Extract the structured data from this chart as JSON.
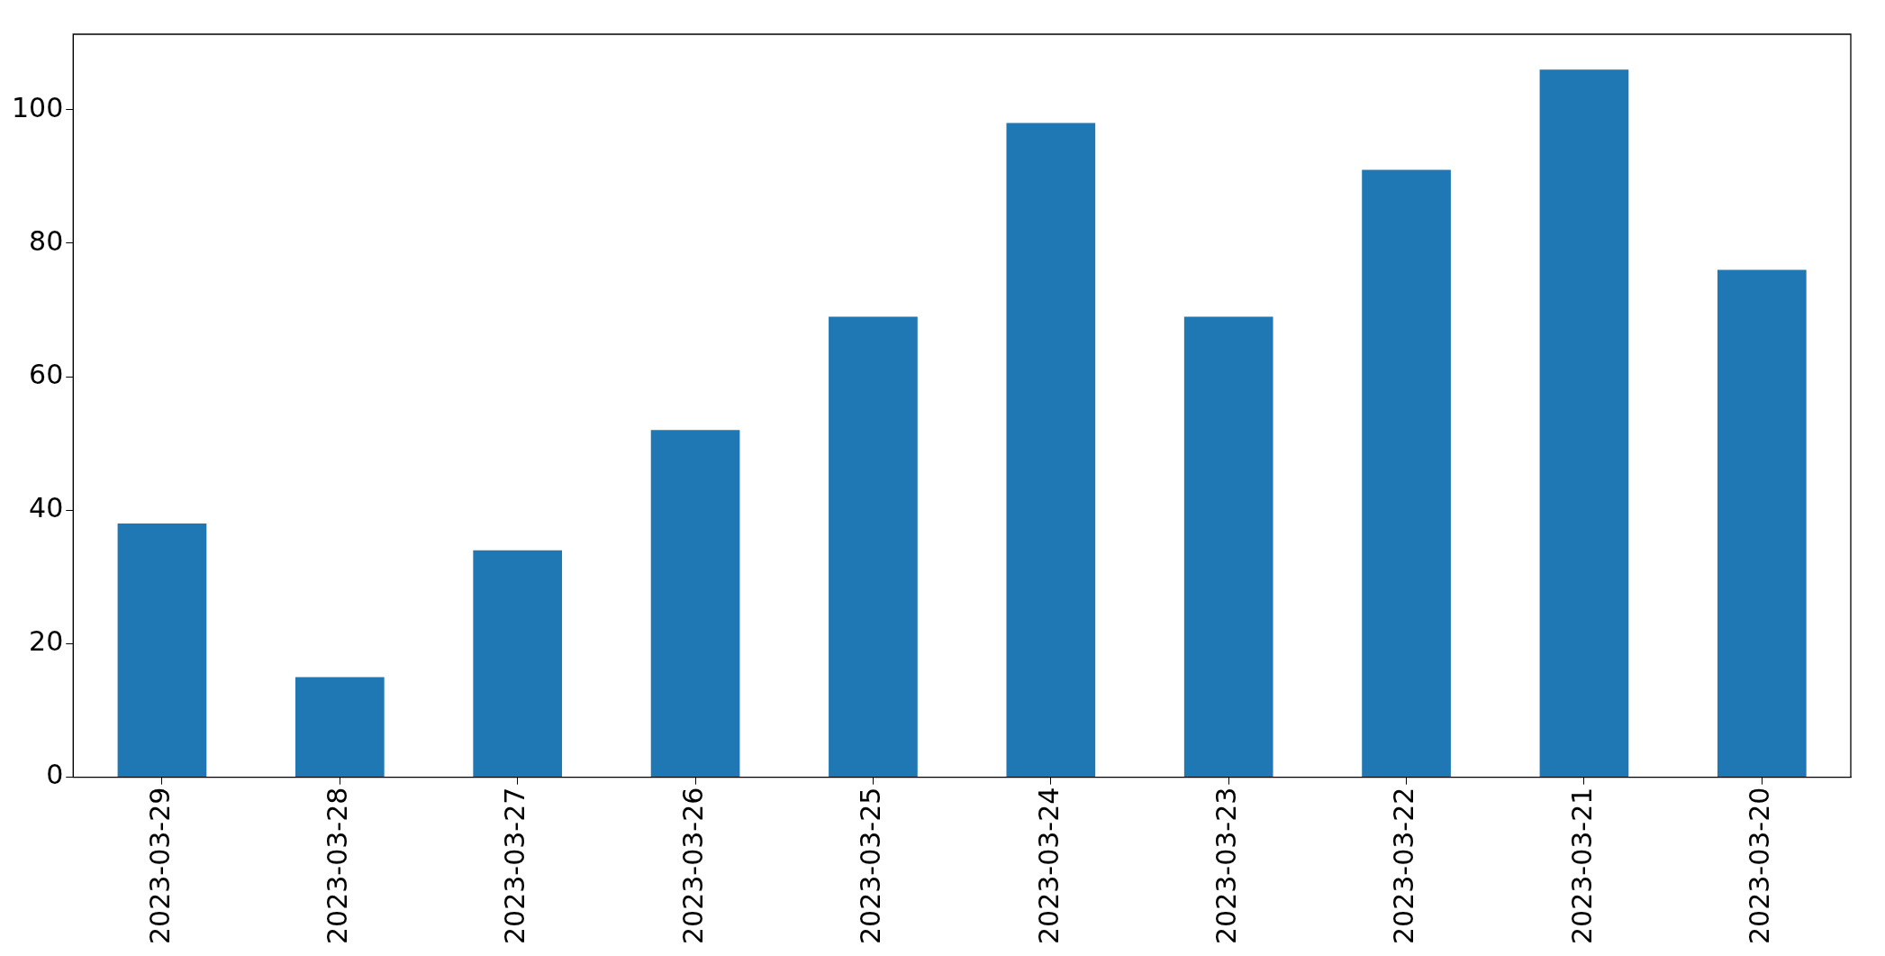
{
  "chart_data": {
    "type": "bar",
    "categories": [
      "2023-03-29",
      "2023-03-28",
      "2023-03-27",
      "2023-03-26",
      "2023-03-25",
      "2023-03-24",
      "2023-03-23",
      "2023-03-22",
      "2023-03-21",
      "2023-03-20"
    ],
    "values": [
      38,
      15,
      34,
      52,
      69,
      98,
      69,
      91,
      106,
      76
    ],
    "color": "#1f77b4",
    "ylim": [
      0,
      111.3
    ],
    "yticks": [
      0,
      20,
      40,
      60,
      80,
      100
    ],
    "grid": false,
    "legend": false
  }
}
